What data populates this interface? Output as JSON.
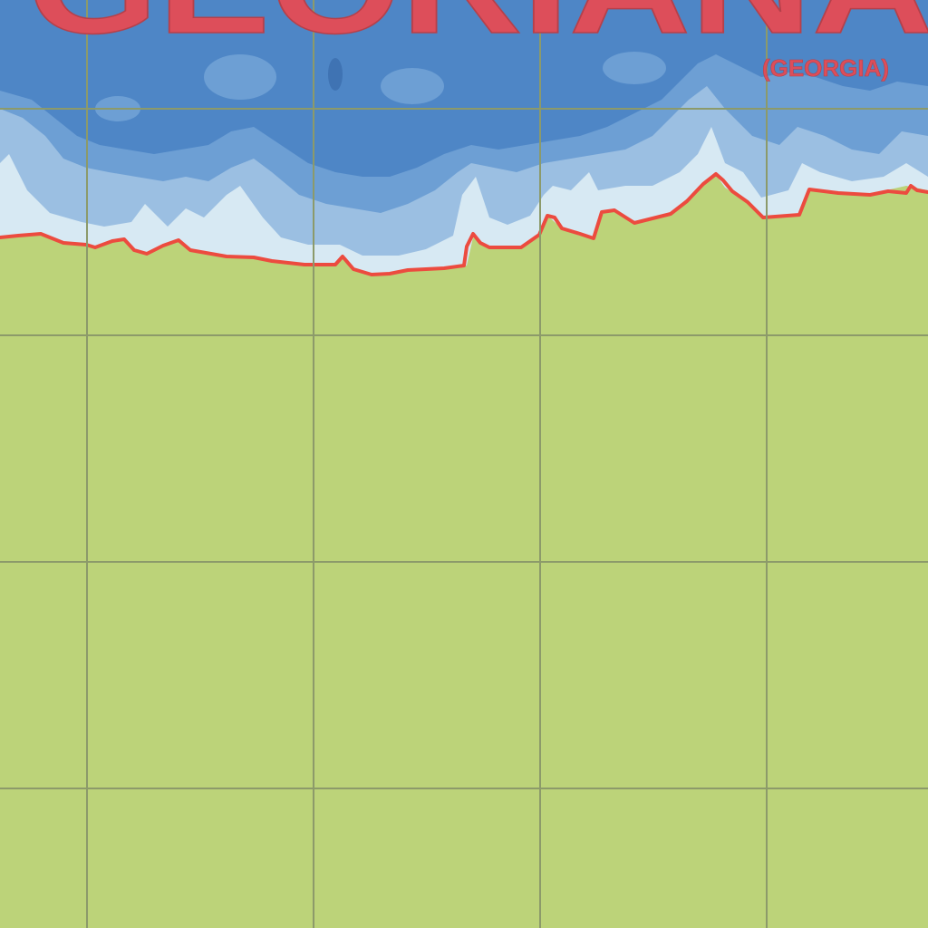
{
  "map": {
    "labels": {
      "sea_name": "GEORIANA",
      "sea_name_translation": "(GEORGIA)"
    },
    "colors": {
      "land": "#bcd379",
      "deep_water": "#4e86c6",
      "mid_water": "#6d9fd4",
      "shallow_water": "#9bbfe2",
      "shore_water": "#d7e9f3",
      "coastline": "#ec4b3f",
      "label": "#dd4e5a",
      "grid": "#8c9a6a"
    }
  }
}
